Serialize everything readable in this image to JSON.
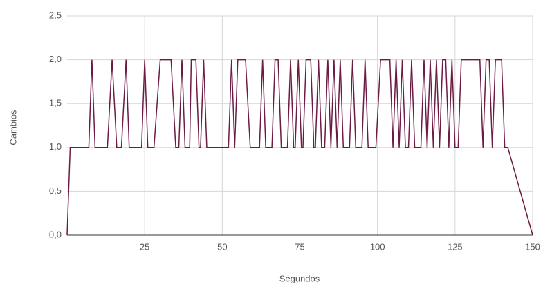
{
  "chart_data": {
    "type": "line",
    "x_label": "Segundos",
    "y_label": "Cambios",
    "x": [
      0,
      1,
      7,
      8,
      9,
      13,
      14.5,
      16,
      17.5,
      19,
      20,
      24,
      25,
      26,
      28,
      30,
      33.5,
      35,
      36,
      37,
      38,
      39.5,
      40,
      41.5,
      42.5,
      43,
      44,
      45,
      52,
      53,
      54,
      55,
      57.5,
      59,
      62,
      63,
      64,
      66,
      67,
      68,
      69,
      71,
      72,
      73,
      73.5,
      74.5,
      75.5,
      76,
      77,
      78.5,
      79.5,
      80,
      81,
      82,
      83,
      84,
      85,
      86,
      87,
      88,
      89,
      91,
      92,
      93,
      95,
      96,
      97,
      99.5,
      101,
      104,
      105,
      106,
      107,
      108,
      109,
      110,
      111,
      112,
      114,
      115,
      116,
      117,
      118,
      119,
      120,
      121,
      122,
      123,
      124,
      125,
      126,
      127,
      133,
      134,
      135,
      136,
      137,
      138,
      140,
      141,
      142,
      150
    ],
    "values": [
      0,
      1,
      1,
      2,
      1,
      1,
      2,
      1,
      1,
      2,
      1,
      1,
      2,
      1,
      1,
      2,
      2,
      1,
      1,
      2,
      1,
      1,
      2,
      2,
      1,
      1,
      2,
      1,
      1,
      2,
      1,
      2,
      2,
      1,
      1,
      2,
      1,
      1,
      2,
      2,
      1,
      1,
      2,
      1,
      1,
      2,
      1,
      1,
      2,
      2,
      1,
      1,
      2,
      1,
      1,
      2,
      1,
      2,
      1,
      2,
      1,
      1,
      2,
      1,
      1,
      2,
      1,
      1,
      2,
      2,
      1,
      2,
      1,
      2,
      1,
      1,
      2,
      1,
      1,
      2,
      1,
      2,
      1,
      2,
      1,
      2,
      2,
      1,
      2,
      1,
      1,
      2,
      2,
      1,
      2,
      2,
      1,
      2,
      2,
      1,
      1,
      0
    ],
    "color": "#6d1a45",
    "xlim": [
      0,
      150
    ],
    "xticks": [
      25,
      50,
      75,
      100,
      125,
      150
    ],
    "ylim": [
      0,
      2.5
    ],
    "yticks": [
      {
        "value": 0,
        "label": "0,0"
      },
      {
        "value": 0.5,
        "label": "0,5"
      },
      {
        "value": 1,
        "label": "1,0"
      },
      {
        "value": 1.5,
        "label": "1,5"
      },
      {
        "value": 2,
        "label": "2,0"
      },
      {
        "value": 2.5,
        "label": "2,5"
      }
    ],
    "grid": true
  }
}
